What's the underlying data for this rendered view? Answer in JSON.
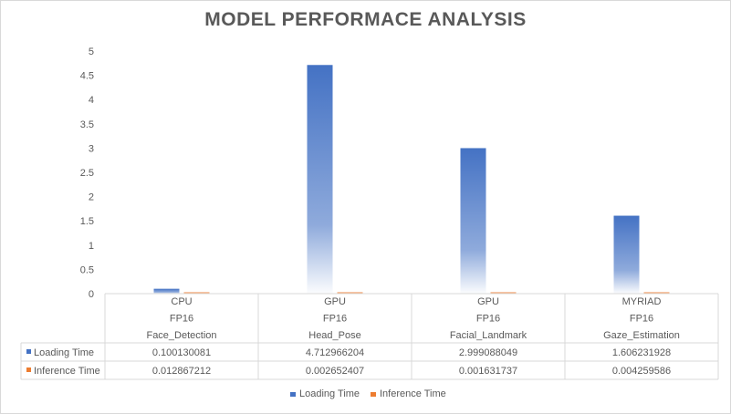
{
  "chart_data": {
    "type": "bar",
    "title": "MODEL PERFORMACE ANALYSIS",
    "categories": [
      [
        "CPU",
        "FP16",
        "Face_Detection"
      ],
      [
        "GPU",
        "FP16",
        "Head_Pose"
      ],
      [
        "GPU",
        "FP16",
        "Facial_Landmark"
      ],
      [
        "MYRIAD",
        "FP16",
        "Gaze_Estimation"
      ]
    ],
    "series": [
      {
        "name": "Loading Time",
        "color": "#4472c4",
        "values": [
          0.100130081,
          4.712966204,
          2.999088049,
          1.606231928
        ],
        "labels": [
          "0.100130081",
          "4.712966204",
          "2.999088049",
          "1.606231928"
        ]
      },
      {
        "name": "Inference Time",
        "color": "#ed7d31",
        "values": [
          0.012867212,
          0.002652407,
          0.001631737,
          0.004259586
        ],
        "labels": [
          "0.012867212",
          "0.002652407",
          "0.001631737",
          "0.004259586"
        ]
      }
    ],
    "ylim": [
      0,
      5
    ],
    "yticks": [
      "0",
      "0.5",
      "1",
      "1.5",
      "2",
      "2.5",
      "3",
      "3.5",
      "4",
      "4.5",
      "5"
    ],
    "xlabel": "",
    "ylabel": "",
    "grid": false,
    "legend": "bottom",
    "data_table": true
  }
}
